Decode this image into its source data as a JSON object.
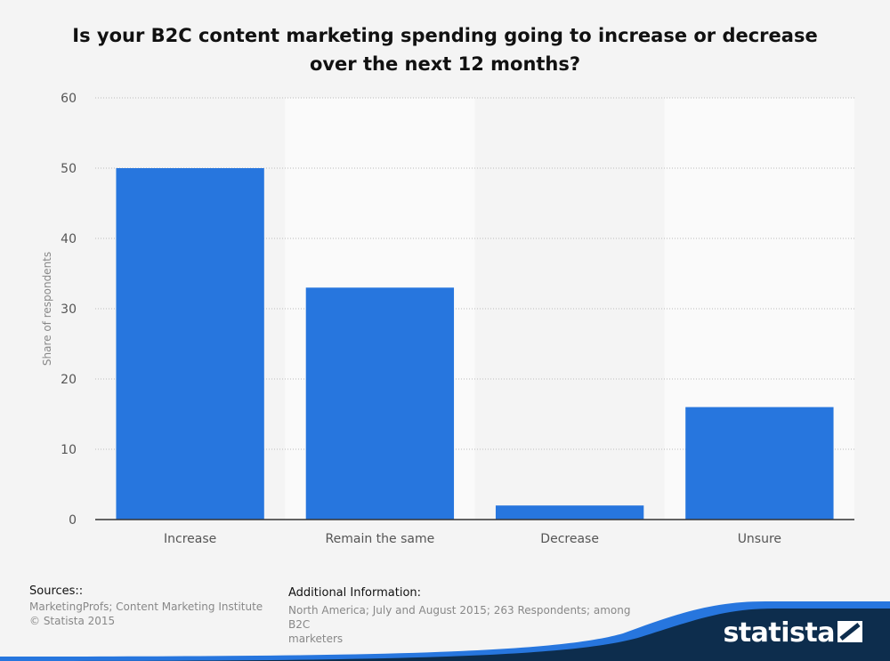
{
  "chart_data": {
    "type": "bar",
    "title": "Is your B2C content marketing spending going to increase or decrease over the next 12 months?",
    "categories": [
      "Increase",
      "Remain the same",
      "Decrease",
      "Unsure"
    ],
    "values": [
      50,
      33,
      2,
      16
    ],
    "xlabel": "",
    "ylabel": "Share of respondents",
    "ylim": [
      0,
      60
    ],
    "yticks": [
      0,
      10,
      20,
      30,
      40,
      50,
      60
    ],
    "grid": true,
    "bar_color": "#2776de"
  },
  "footer": {
    "sources_heading": "Sources::",
    "sources_lines": [
      "MarketingProfs; Content Marketing Institute",
      "© Statista 2015"
    ],
    "additional_heading": "Additional Information:",
    "additional_lines": [
      "North America; July and August 2015; 263 Respondents; among B2C",
      "marketers"
    ]
  },
  "brand": {
    "name": "statista",
    "bg_color": "#0d2d4d",
    "accent_color": "#2776de"
  }
}
